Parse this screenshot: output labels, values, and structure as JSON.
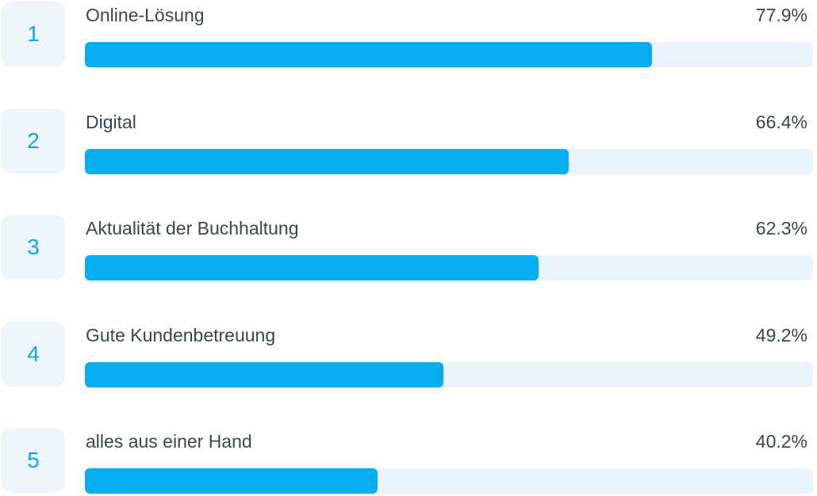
{
  "colors": {
    "bar": "#06aeef",
    "track": "#eaf4fd",
    "rank_box": "#eef5fc",
    "rank_text": "#0aa8e8",
    "text": "#3b4451"
  },
  "chart_data": {
    "type": "bar",
    "orientation": "horizontal",
    "xlim": [
      0,
      100
    ],
    "grid": false,
    "categories": [
      "Online-Lösung",
      "Digital",
      "Aktualität der Buchhaltung",
      "Gute Kundenbetreuung",
      "alles aus einer Hand"
    ],
    "values": [
      77.9,
      66.4,
      62.3,
      49.2,
      40.2
    ],
    "rows": [
      {
        "rank": "1",
        "label": "Online-Lösung",
        "value_text": "77.9%",
        "value": 77.9
      },
      {
        "rank": "2",
        "label": "Digital",
        "value_text": "66.4%",
        "value": 66.4
      },
      {
        "rank": "3",
        "label": "Aktualität der Buchhaltung",
        "value_text": "62.3%",
        "value": 62.3
      },
      {
        "rank": "4",
        "label": "Gute Kundenbetreuung",
        "value_text": "49.2%",
        "value": 49.2
      },
      {
        "rank": "5",
        "label": "alles aus einer Hand",
        "value_text": "40.2%",
        "value": 40.2
      }
    ]
  }
}
